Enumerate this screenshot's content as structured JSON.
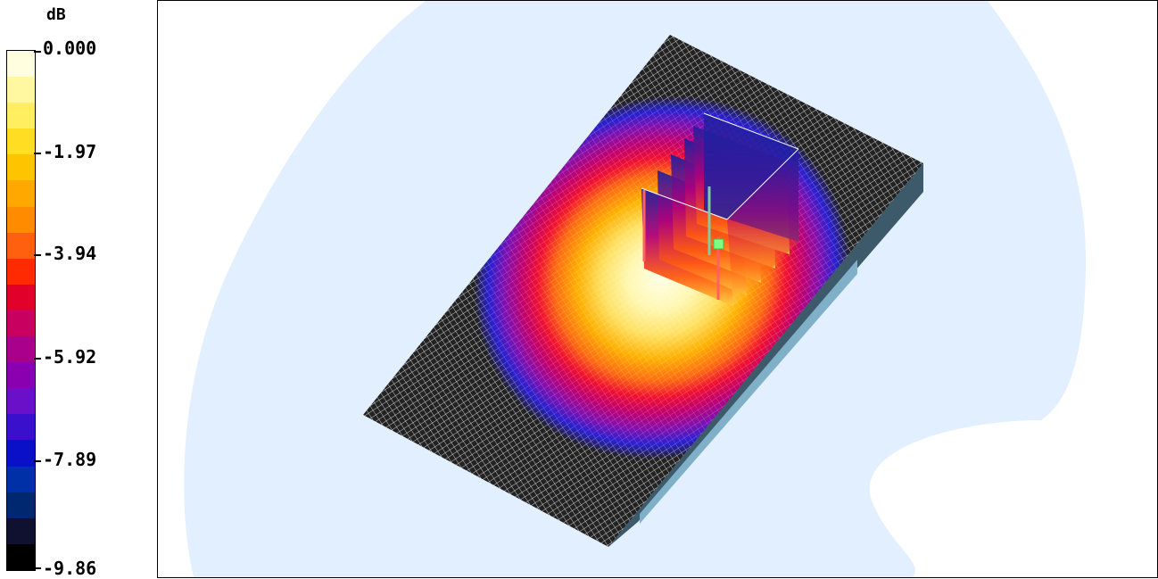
{
  "legend": {
    "unit": "dB",
    "labels": [
      "0.000",
      "-1.97",
      "-3.94",
      "-5.92",
      "-7.89",
      "-9.86"
    ],
    "bands": [
      "#ffffe0",
      "#fff8a0",
      "#ffee60",
      "#ffdd22",
      "#ffc400",
      "#ffa800",
      "#ff8c00",
      "#ff6010",
      "#ff2a00",
      "#e0002a",
      "#c80060",
      "#a8008c",
      "#8a00b0",
      "#6a10c8",
      "#3a10cc",
      "#0a10c8",
      "#0030a8",
      "#002870",
      "#101030",
      "#000000"
    ]
  },
  "viewport": {
    "background_color": "#e2efff",
    "grid_color": "#202020",
    "marker_color": "#80ff80"
  }
}
